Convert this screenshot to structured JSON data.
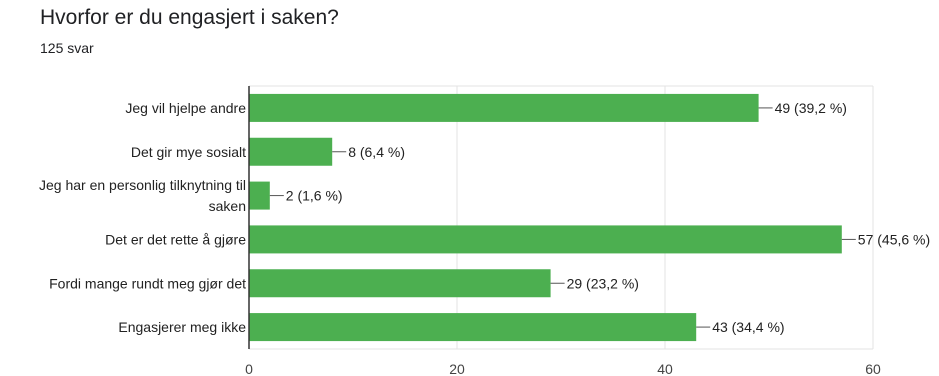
{
  "question": {
    "title": "Hvorfor er du engasjert i saken?",
    "response_count": "125 svar"
  },
  "colors": {
    "bar": "#4caf50",
    "grid": "#e3e3e3",
    "axis": "#333333",
    "leader": "#555555"
  },
  "chart_data": {
    "type": "bar",
    "orientation": "horizontal",
    "title": "Hvorfor er du engasjert i saken?",
    "categories": [
      [
        "Jeg vil hjelpe andre"
      ],
      [
        "Det gir mye sosialt"
      ],
      [
        "Jeg har en personlig tilknytning til",
        "saken"
      ],
      [
        "Det er det rette å gjøre"
      ],
      [
        "Fordi mange rundt meg gjør det"
      ],
      [
        "Engasjerer meg ikke"
      ]
    ],
    "values": [
      49,
      8,
      2,
      57,
      29,
      43
    ],
    "data_labels": [
      "49 (39,2 %)",
      "8 (6,4 %)",
      "2 (1,6 %)",
      "57 (45,6 %)",
      "29 (23,2 %)",
      "43 (34,4 %)"
    ],
    "xlim": [
      0,
      60
    ],
    "x_ticks": [
      0,
      20,
      40,
      60
    ],
    "grid": true,
    "legend": "none"
  }
}
